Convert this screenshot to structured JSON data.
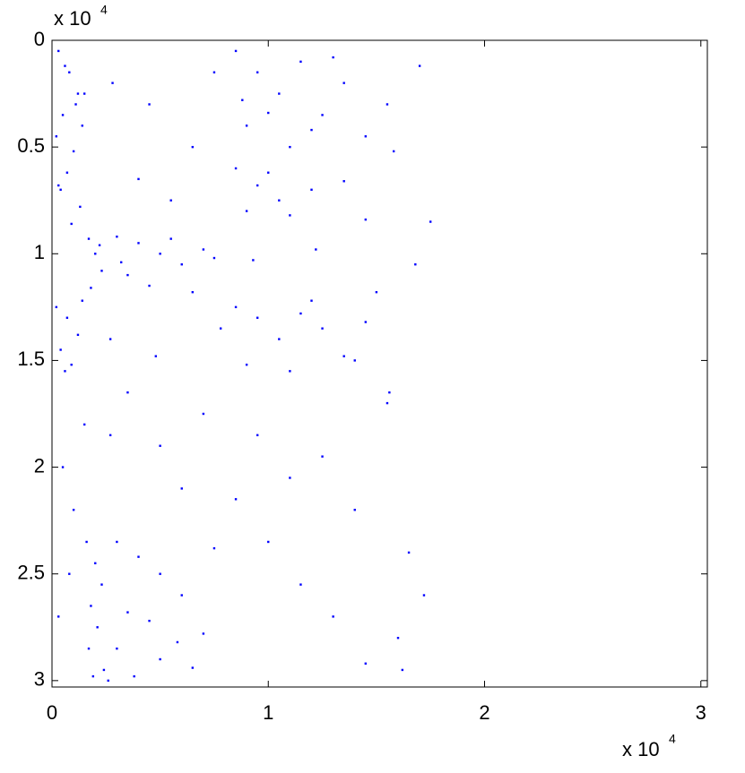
{
  "chart_data": {
    "type": "scatter",
    "color": "#0000ff",
    "y_direction": "reverse",
    "box": true,
    "x_exponent_base": "x 10",
    "x_exponent": "4",
    "y_exponent_base": "x 10",
    "y_exponent": "4",
    "xlim": [
      0,
      30300
    ],
    "ylim": [
      0,
      30300
    ],
    "xticks": [
      0,
      {
        "value": 10000,
        "label": "1"
      },
      {
        "value": 20000,
        "label": "2"
      },
      {
        "value": 30000,
        "label": "3"
      }
    ],
    "yticks": [
      0,
      {
        "value": 5000,
        "label": "0.5"
      },
      {
        "value": 10000,
        "label": "1"
      },
      {
        "value": 15000,
        "label": "1.5"
      },
      {
        "value": 20000,
        "label": "2"
      },
      {
        "value": 25000,
        "label": "2.5"
      },
      {
        "value": 30000,
        "label": "3"
      }
    ],
    "x": [
      300,
      800,
      1200,
      500,
      200,
      1000,
      700,
      400,
      1300,
      900,
      600,
      1100,
      300,
      1400,
      200,
      700,
      1200,
      400,
      900,
      1400,
      600,
      1700,
      2000,
      2300,
      1800,
      2200,
      1600,
      2000,
      2300,
      1800,
      2100,
      1700,
      2400,
      1900,
      3000,
      4000,
      5000,
      6000,
      7000,
      3500,
      4500,
      6500,
      7500,
      3200,
      5500,
      3000,
      4000,
      5000,
      6000,
      3500,
      4500,
      7000,
      3000,
      5000,
      6500,
      3800,
      5800,
      7500,
      8500,
      9500,
      10500,
      11500,
      12500,
      13500,
      14500,
      9000,
      11000,
      13000,
      15500,
      8800,
      12000,
      10000,
      8500,
      9500,
      10500,
      12000,
      13500,
      9000,
      11000,
      14500,
      10000,
      8500,
      9500,
      10500,
      11500,
      12500,
      13500,
      14500,
      9000,
      11000,
      12000,
      14000,
      1500,
      2800,
      4500,
      6500,
      7500,
      3500,
      5000,
      6000,
      7000,
      9500,
      11000,
      12500,
      14000,
      15500,
      16500,
      17200,
      16000,
      15800,
      17000,
      16800,
      15600,
      8500,
      10000,
      11500,
      13000,
      14500,
      16200,
      4000,
      5500,
      2700,
      500,
      1000,
      300,
      800,
      2600,
      2700,
      4800,
      7800,
      9300,
      12200,
      15000,
      17500,
      1500
    ],
    "values": [
      500,
      1500,
      2500,
      3500,
      4500,
      5200,
      6200,
      7000,
      7800,
      8600,
      1200,
      3000,
      6800,
      4000,
      12500,
      13000,
      13800,
      14500,
      15200,
      12200,
      15500,
      9300,
      10000,
      10800,
      11600,
      9600,
      23500,
      24500,
      25500,
      26500,
      27500,
      28500,
      29500,
      29800,
      9200,
      9500,
      10000,
      10500,
      9800,
      11000,
      11500,
      11800,
      10200,
      10400,
      9300,
      23500,
      24200,
      25000,
      26000,
      26800,
      27200,
      27800,
      28500,
      29000,
      29400,
      29800,
      28200,
      23800,
      500,
      1500,
      2500,
      1000,
      3500,
      2000,
      4500,
      4000,
      5000,
      800,
      3000,
      2800,
      4200,
      3400,
      6000,
      6800,
      7500,
      7000,
      6600,
      8000,
      8200,
      8400,
      6200,
      12500,
      13000,
      14000,
      12800,
      13500,
      14800,
      13200,
      15200,
      15500,
      12200,
      15000,
      18000,
      2000,
      3000,
      5000,
      1500,
      16500,
      19000,
      21000,
      17500,
      18500,
      20500,
      19500,
      22000,
      17000,
      24000,
      26000,
      28000,
      5200,
      1200,
      10500,
      16500,
      21500,
      23500,
      25500,
      27000,
      29200,
      29500,
      6500,
      7500,
      14000,
      20000,
      22000,
      27000,
      25000,
      30000,
      18500,
      14800,
      13500,
      10300,
      9800,
      11800,
      8500,
      2500
    ]
  }
}
